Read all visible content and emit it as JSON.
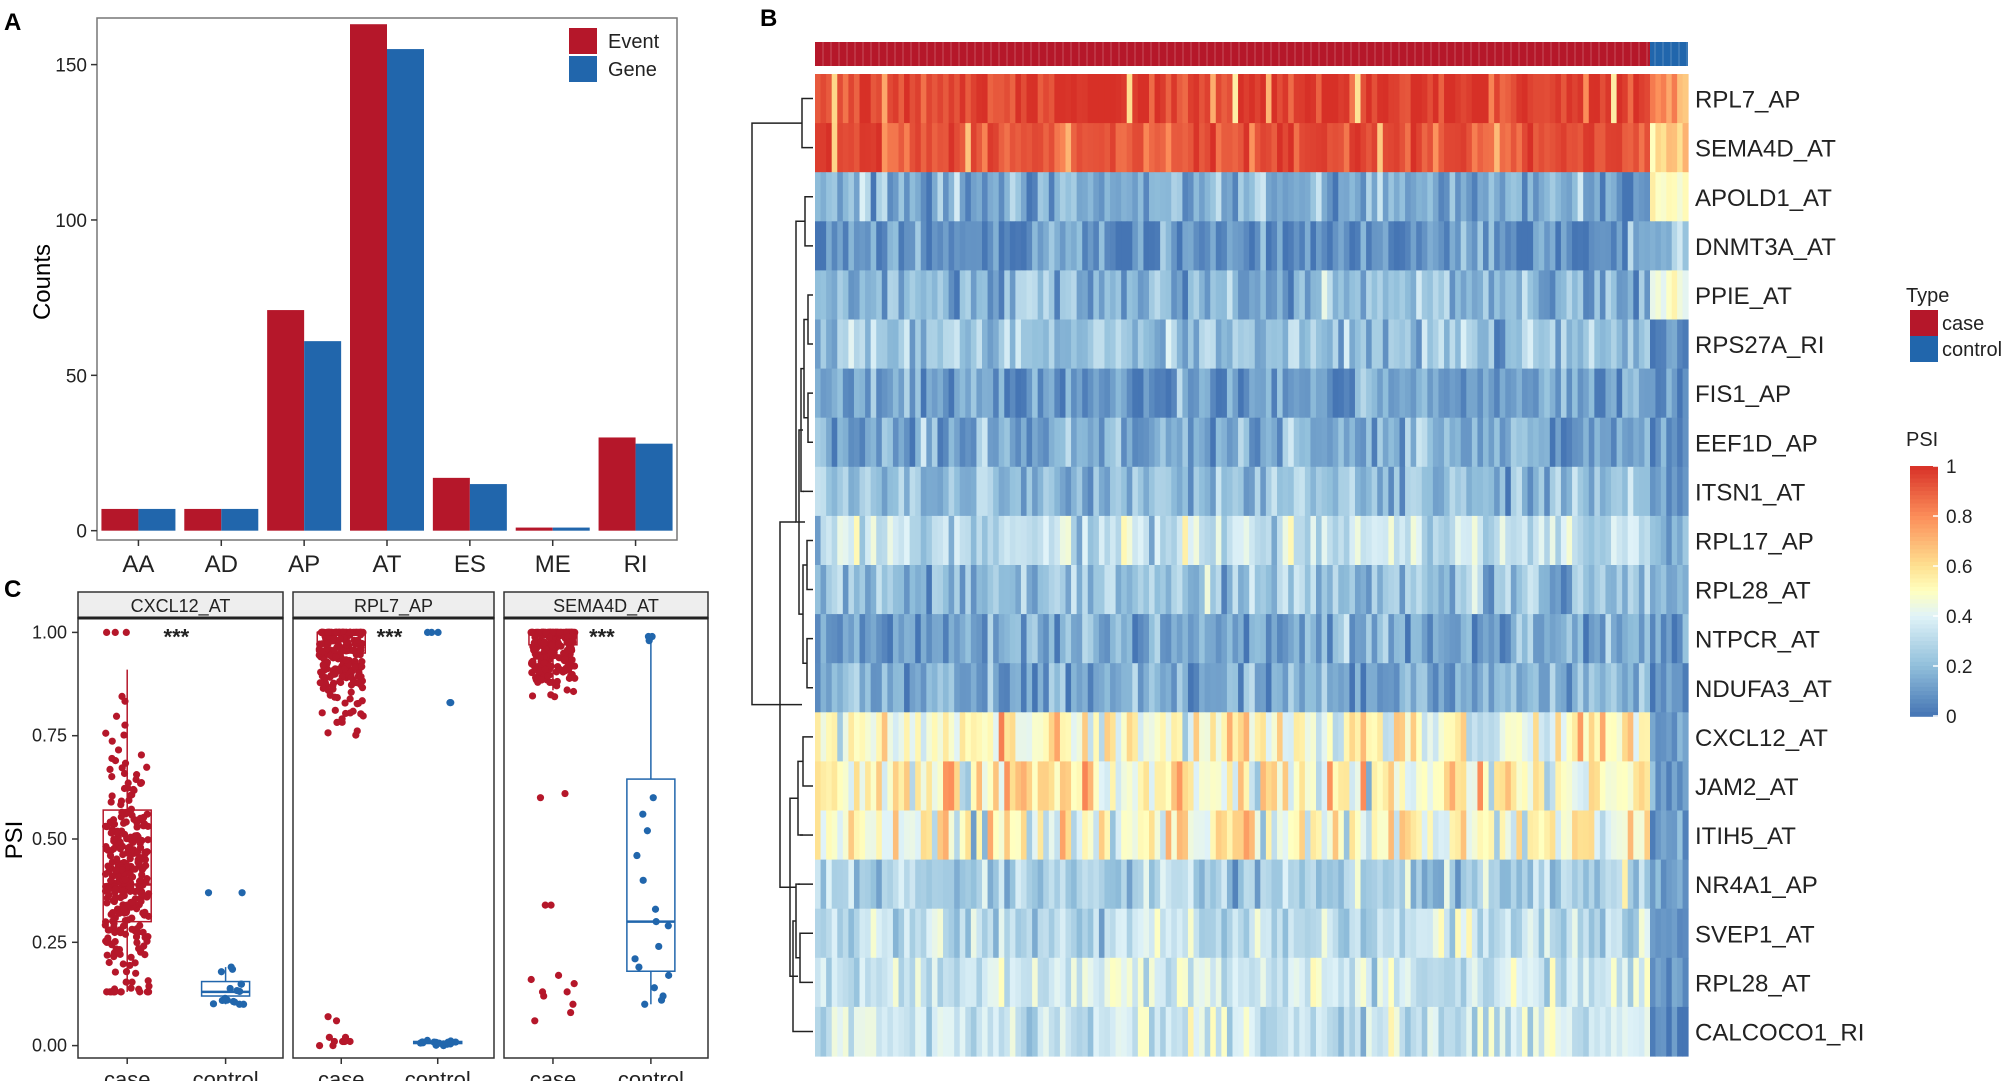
{
  "panels": {
    "a": "A",
    "b": "B",
    "c": "C"
  },
  "colors": {
    "event": "#b5172a",
    "gene": "#2166ac",
    "case": "#b5172a",
    "control": "#2166ac",
    "psi_low": "#4575b4",
    "psi_mid": "#ffffbf",
    "psi_high": "#d73027",
    "strip_bg": "#eeeeee"
  },
  "chart_data": [
    {
      "id": "A",
      "type": "bar",
      "title": "",
      "xlabel": "",
      "ylabel": "Counts",
      "ylim": [
        -3,
        165
      ],
      "yticks": [
        0,
        50,
        100,
        150
      ],
      "ytick_labels": [
        "0",
        "50",
        "100",
        "150"
      ],
      "categories": [
        "AA",
        "AD",
        "AP",
        "AT",
        "ES",
        "ME",
        "RI"
      ],
      "series": [
        {
          "name": "Event",
          "values": [
            7,
            7,
            71,
            163,
            17,
            1,
            30
          ]
        },
        {
          "name": "Gene",
          "values": [
            7,
            7,
            61,
            155,
            15,
            1,
            28
          ]
        }
      ],
      "legend": {
        "position": "top-right",
        "entries": [
          "Event",
          "Gene"
        ]
      },
      "grid": false
    },
    {
      "id": "B",
      "type": "heatmap",
      "rows": [
        "RPL7_AP",
        "SEMA4D_AT",
        "APOLD1_AT",
        "DNMT3A_AT",
        "PPIE_AT",
        "RPS27A_RI",
        "FIS1_AP",
        "EEF1D_AP",
        "ITSN1_AT",
        "RPL17_AP",
        "RPL28_AT",
        "NTPCR_AT",
        "NDUFA3_AT",
        "CXCL12_AT",
        "JAM2_AT",
        "ITIH5_AT",
        "NR4A1_AP",
        "SVEP1_AT",
        "RPL28_AT",
        "CALCOCO1_RI"
      ],
      "columns": {
        "case": 150,
        "control": 7
      },
      "row_mean_psi": {
        "case": [
          0.96,
          0.93,
          0.16,
          0.08,
          0.17,
          0.22,
          0.12,
          0.15,
          0.2,
          0.33,
          0.22,
          0.14,
          0.15,
          0.48,
          0.52,
          0.46,
          0.26,
          0.31,
          0.36,
          0.34
        ],
        "control": [
          0.75,
          0.6,
          0.5,
          0.2,
          0.45,
          0.05,
          0.06,
          0.08,
          0.1,
          0.15,
          0.12,
          0.08,
          0.06,
          0.12,
          0.1,
          0.08,
          0.08,
          0.06,
          0.06,
          0.05
        ]
      },
      "annotation_legend": {
        "title": "Type",
        "entries": [
          "case",
          "control"
        ]
      },
      "color_legend": {
        "title": "PSI",
        "ticks": [
          1,
          0.8,
          0.6,
          0.4,
          0.2,
          0
        ],
        "tick_labels": [
          "1",
          "0.8",
          "0.6",
          "0.4",
          "0.2",
          "0"
        ]
      }
    },
    {
      "id": "C",
      "type": "scatter",
      "subtype": "boxplot-jitter",
      "ylabel": "PSI",
      "ylim": [
        -0.03,
        1.03
      ],
      "yticks": [
        0,
        0.25,
        0.5,
        0.75,
        1
      ],
      "ytick_labels": [
        "0.00",
        "0.25",
        "0.50",
        "0.75",
        "1.00"
      ],
      "groups": [
        "case",
        "control"
      ],
      "facets": [
        {
          "title": "CXCL12_AT",
          "significance": "***",
          "box": {
            "case": {
              "q1": 0.3,
              "median": 0.39,
              "q3": 0.57,
              "whisker_low": 0.13,
              "whisker_high": 0.91
            },
            "control": {
              "q1": 0.12,
              "median": 0.13,
              "q3": 0.155,
              "whisker_low": 0.1,
              "whisker_high": 0.19
            }
          },
          "points": {
            "case": {
              "n": 320,
              "range": [
                0.13,
                0.91
              ],
              "center": 0.42,
              "spread": 0.15,
              "extra": [
                1.0,
                1.0,
                1.0
              ]
            },
            "control": {
              "n": 18,
              "range": [
                0.1,
                0.19
              ],
              "center": 0.135,
              "spread": 0.025,
              "extra": [
                0.37,
                0.37
              ]
            }
          }
        },
        {
          "title": "RPL7_AP",
          "significance": "***",
          "box": {
            "case": {
              "q1": 0.95,
              "median": 1.0,
              "q3": 1.0,
              "whisker_low": 0.88,
              "whisker_high": 1.0
            },
            "control": {
              "q1": 0.005,
              "median": 0.007,
              "q3": 0.01,
              "whisker_low": 0.0,
              "whisker_high": 0.015
            }
          },
          "points": {
            "case": {
              "n": 220,
              "range": [
                0.58,
                1.0
              ],
              "center": 0.95,
              "spread": 0.08,
              "extra": [
                0.07,
                0.06,
                0.02,
                0.02,
                0.01,
                0.01,
                0.01,
                0.01,
                0.01,
                0.0,
                0.0
              ]
            },
            "control": {
              "n": 16,
              "range": [
                0.0,
                0.015
              ],
              "center": 0.007,
              "spread": 0.004,
              "extra": [
                1.0,
                1.0,
                1.0,
                0.83,
                0.83
              ]
            }
          }
        },
        {
          "title": "SEMA4D_AT",
          "significance": "***",
          "box": {
            "case": {
              "q1": 0.97,
              "median": 1.0,
              "q3": 1.0,
              "whisker_low": 0.86,
              "whisker_high": 1.0
            },
            "control": {
              "q1": 0.18,
              "median": 0.3,
              "q3": 0.645,
              "whisker_low": 0.1,
              "whisker_high": 0.99
            }
          },
          "points": {
            "case": {
              "n": 220,
              "range": [
                0.76,
                1.0
              ],
              "center": 0.97,
              "spread": 0.06,
              "extra": [
                0.61,
                0.6,
                0.34,
                0.34,
                0.17,
                0.16,
                0.15,
                0.13,
                0.13,
                0.12,
                0.1,
                0.08,
                0.06
              ]
            },
            "control": {
              "n": 0,
              "range": [
                0.1,
                0.99
              ],
              "center": 0.3,
              "spread": 0.2,
              "extra": [
                0.99,
                0.99,
                0.98,
                0.6,
                0.56,
                0.52,
                0.46,
                0.4,
                0.33,
                0.3,
                0.29,
                0.24,
                0.21,
                0.19,
                0.17,
                0.14,
                0.12,
                0.11,
                0.1
              ]
            }
          }
        }
      ]
    }
  ]
}
